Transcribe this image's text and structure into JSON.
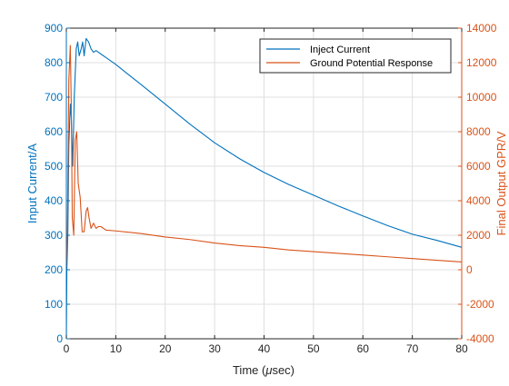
{
  "chart_data": {
    "type": "line",
    "xlabel": "Time (μsec)",
    "ylabel_left": "Input Current/A",
    "ylabel_right": "Final Output GPR/V",
    "xlim": [
      0,
      80
    ],
    "ylim_left": [
      0,
      900
    ],
    "ylim_right": [
      -4000,
      14000
    ],
    "xticks": [
      0,
      10,
      20,
      30,
      40,
      50,
      60,
      70,
      80
    ],
    "yticks_left": [
      0,
      100,
      200,
      300,
      400,
      500,
      600,
      700,
      800,
      900
    ],
    "yticks_right": [
      -4000,
      -2000,
      0,
      2000,
      4000,
      6000,
      8000,
      10000,
      12000,
      14000
    ],
    "grid": true,
    "legend_position": "top-right",
    "colors": {
      "left": "#0072BD",
      "right": "#D95319"
    },
    "series": [
      {
        "name": "Inject Current",
        "axis": "left",
        "color": "#0072BD",
        "x": [
          0,
          0.1,
          0.3,
          0.5,
          0.8,
          1.0,
          1.3,
          1.6,
          2.0,
          2.3,
          2.6,
          3.0,
          3.3,
          3.6,
          4.0,
          4.5,
          5.0,
          5.5,
          6.0,
          6.5,
          7.0,
          8,
          10,
          12,
          15,
          20,
          25,
          30,
          35,
          40,
          45,
          50,
          55,
          60,
          65,
          70,
          75,
          80
        ],
        "y": [
          0,
          200,
          300,
          560,
          680,
          640,
          500,
          700,
          840,
          860,
          820,
          840,
          860,
          820,
          870,
          860,
          840,
          830,
          835,
          830,
          825,
          815,
          795,
          772,
          738,
          680,
          622,
          568,
          522,
          482,
          447,
          416,
          385,
          356,
          328,
          303,
          285,
          265
        ]
      },
      {
        "name": "Ground Potential Response",
        "axis": "right",
        "color": "#D95319",
        "x": [
          0,
          0.2,
          0.5,
          0.8,
          1.0,
          1.2,
          1.5,
          1.8,
          2.1,
          2.4,
          2.8,
          3.2,
          3.6,
          4.0,
          4.3,
          4.6,
          5.0,
          5.5,
          6.0,
          6.5,
          7,
          8,
          10,
          15,
          20,
          25,
          30,
          35,
          40,
          45,
          50,
          55,
          60,
          65,
          70,
          75,
          80
        ],
        "y": [
          0,
          2000,
          11000,
          13000,
          9500,
          3000,
          2000,
          7500,
          8000,
          5000,
          4200,
          2200,
          2200,
          3400,
          3600,
          3000,
          2400,
          2700,
          2400,
          2500,
          2500,
          2300,
          2250,
          2100,
          1900,
          1750,
          1550,
          1400,
          1300,
          1150,
          1050,
          950,
          850,
          750,
          650,
          550,
          450
        ]
      }
    ]
  }
}
